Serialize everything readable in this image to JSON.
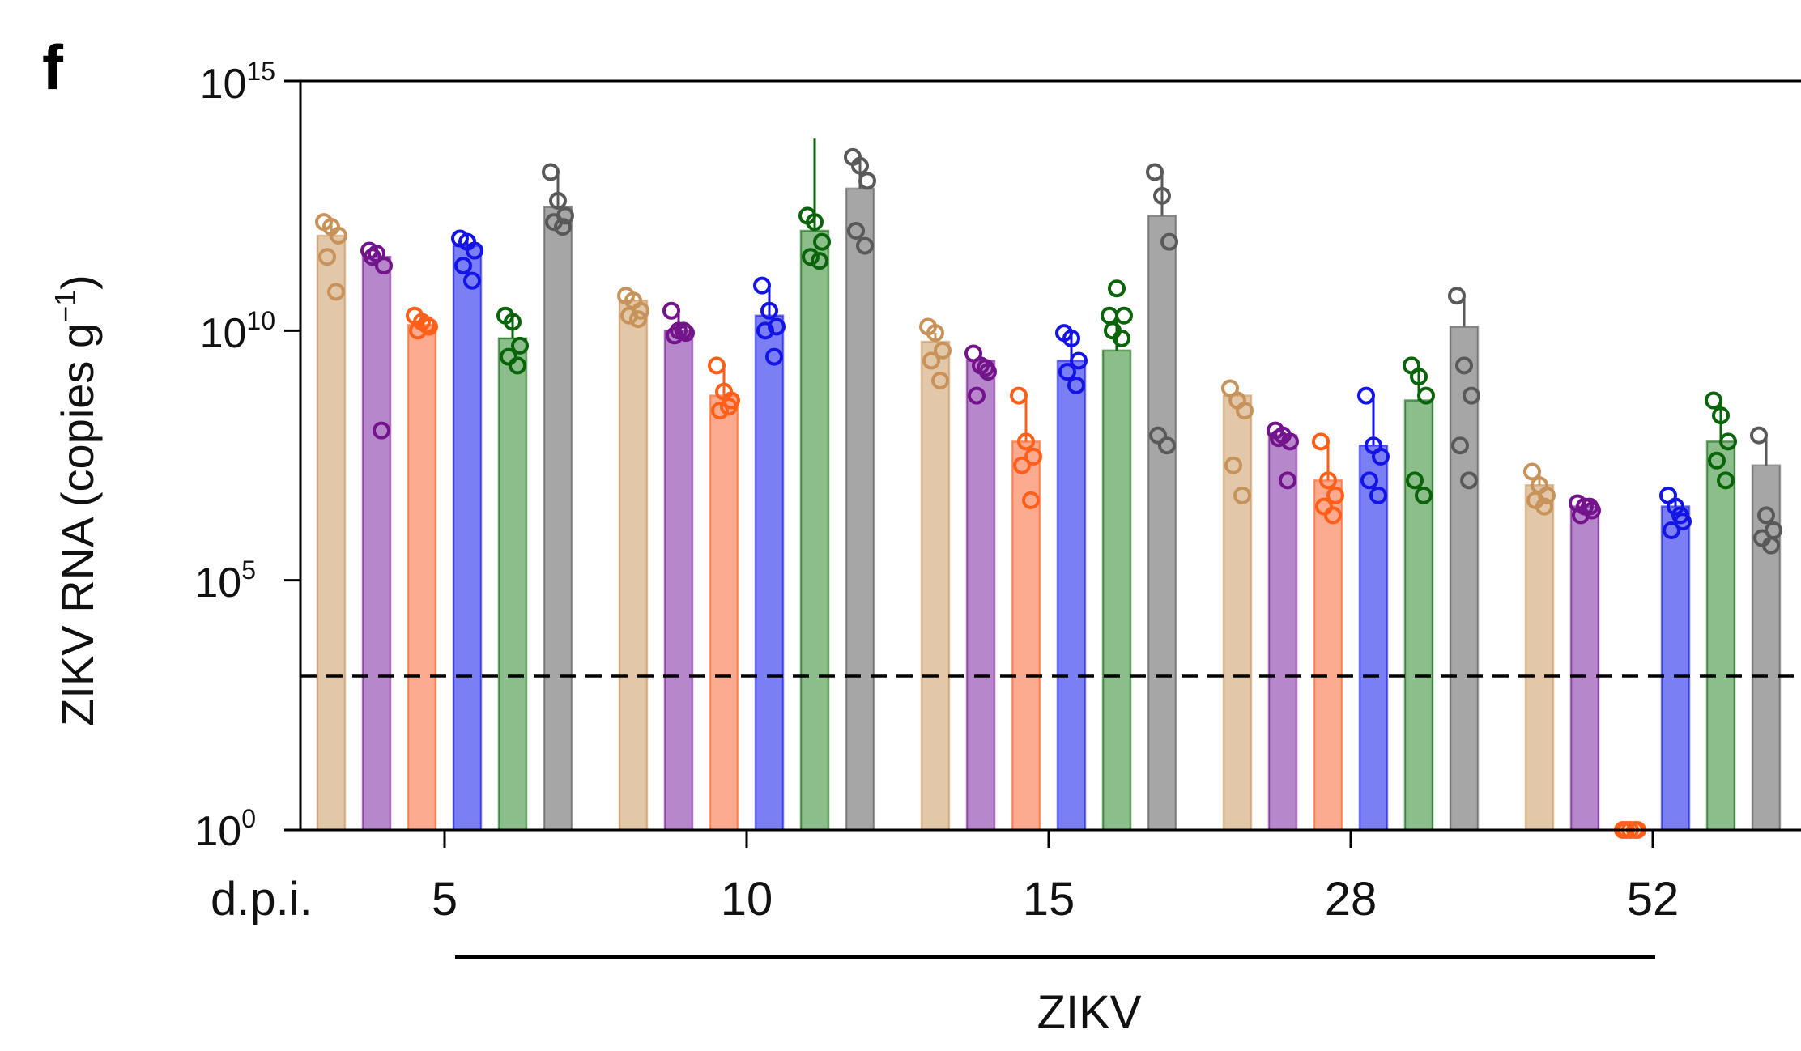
{
  "panel_label": "f",
  "chart_data": {
    "type": "bar",
    "ylabel": "ZIKV RNA (copies g",
    "ylabel_sup": "−1",
    "ylabel_close": ")",
    "yscale": "log10",
    "ylim": [
      1,
      1000000000000000.0
    ],
    "y_ticks": [
      {
        "base": "10",
        "exp": "15",
        "value": 1000000000000000.0
      },
      {
        "base": "10",
        "exp": "10",
        "value": 10000000000.0
      },
      {
        "base": "10",
        "exp": "5",
        "value": 100000.0
      },
      {
        "base": "10",
        "exp": "0",
        "value": 1
      }
    ],
    "x_axis_prefix": "d.p.i.",
    "categories": [
      "5",
      "10",
      "15",
      "28",
      "52"
    ],
    "group_label": "ZIKV",
    "detection_limit": 1000,
    "grid": false,
    "legend": "none",
    "series": [
      {
        "color": "#C8935A",
        "fill": "#E2C7A8",
        "values": [
          800000000000.0,
          40000000000.0,
          6000000000.0,
          500000000.0,
          8000000.0
        ],
        "errors": [
          1300000000000.0,
          50000000000.0,
          9000000000.0,
          700000000.0,
          15000000.0
        ],
        "points": [
          [
            1500000000000.0,
            1200000000000.0,
            800000000000.0,
            300000000000.0,
            60000000000.0
          ],
          [
            50000000000.0,
            40000000000.0,
            25000000000.0,
            20000000000.0,
            17000000000.0
          ],
          [
            12000000000.0,
            9000000000.0,
            4000000000.0,
            2500000000.0,
            1000000000.0
          ],
          [
            700000000.0,
            400000000.0,
            250000000.0,
            20000000.0,
            5000000.0
          ],
          [
            15000000.0,
            8000000.0,
            5000000.0,
            4000000.0,
            3000000.0
          ]
        ]
      },
      {
        "color": "#74148C",
        "fill": "#B688CB",
        "values": [
          300000000000.0,
          10000000000.0,
          2500000000.0,
          80000000.0,
          3000000.0
        ],
        "errors": [
          400000000000.0,
          25000000000.0,
          3500000000.0,
          100000000.0,
          3500000.0
        ],
        "points": [
          [
            400000000000.0,
            350000000000.0,
            200000000000.0,
            300000000000.0,
            100000000.0
          ],
          [
            25000000000.0,
            10000000000.0,
            9000000000.0,
            8000000000.0,
            10000000000.0
          ],
          [
            3500000000.0,
            2000000000.0,
            1500000000.0,
            500000000.0,
            1800000000.0
          ],
          [
            100000000.0,
            80000000.0,
            60000000.0,
            70000000.0,
            10000000.0
          ],
          [
            3500000.0,
            3000000.0,
            2500000.0,
            2000000.0,
            3000000.0
          ]
        ]
      },
      {
        "color": "#FF5F19",
        "fill": "#FCAA90",
        "values": [
          13000000000.0,
          500000000.0,
          60000000.0,
          10000000.0,
          1
        ],
        "errors": [
          20000000000.0,
          2000000000.0,
          500000000.0,
          60000000.0,
          1
        ],
        "points": [
          [
            20000000000.0,
            15000000000.0,
            12000000000.0,
            10000000000.0,
            13000000000.0
          ],
          [
            2000000000.0,
            600000000.0,
            400000000.0,
            250000000.0,
            300000000.0
          ],
          [
            500000000.0,
            60000000.0,
            30000000.0,
            20000000.0,
            4000000.0
          ],
          [
            60000000.0,
            10000000.0,
            5000000.0,
            3000000.0,
            2000000.0
          ],
          [
            1,
            1,
            1,
            1,
            1
          ]
        ]
      },
      {
        "color": "#1414E6",
        "fill": "#7A80F4",
        "values": [
          500000000000.0,
          20000000000.0,
          2500000000.0,
          50000000.0,
          3000000.0
        ],
        "errors": [
          700000000000.0,
          80000000000.0,
          9000000000.0,
          500000000.0,
          5000000.0
        ],
        "points": [
          [
            700000000000.0,
            600000000000.0,
            400000000000.0,
            200000000000.0,
            100000000000.0
          ],
          [
            80000000000.0,
            25000000000.0,
            12000000000.0,
            10000000000.0,
            3000000000.0
          ],
          [
            9000000000.0,
            7000000000.0,
            2500000000.0,
            1500000000.0,
            800000000.0
          ],
          [
            500000000.0,
            50000000.0,
            30000000.0,
            10000000.0,
            5000000.0
          ],
          [
            5000000.0,
            3000000.0,
            1500000.0,
            1000000.0,
            2000000.0
          ]
        ]
      },
      {
        "color": "#0A640A",
        "fill": "#8BBE8B",
        "values": [
          7000000000.0,
          1000000000000.0,
          4000000000.0,
          400000000.0,
          60000000.0
        ],
        "errors": [
          20000000000.0,
          70000000000000.0,
          20000000000.0,
          2000000000.0,
          400000000.0
        ],
        "points": [
          [
            20000000000.0,
            15000000000.0,
            5000000000.0,
            3000000000.0,
            2000000000.0
          ],
          [
            2000000000000.0,
            1500000000000.0,
            600000000000.0,
            300000000000.0,
            250000000000.0
          ],
          [
            20000000000.0,
            70000000000.0,
            20000000000.0,
            10000000000.0,
            7000000000.0
          ],
          [
            2000000000.0,
            1200000000.0,
            500000000.0,
            10000000.0,
            5000000.0
          ],
          [
            400000000.0,
            200000000.0,
            60000000.0,
            25000000.0,
            10000000.0
          ]
        ]
      },
      {
        "color": "#595959",
        "fill": "#A6A6A6",
        "values": [
          3000000000000.0,
          7000000000000.0,
          2000000000000.0,
          12000000000.0,
          20000000.0
        ],
        "errors": [
          15000000000000.0,
          30000000000000.0,
          15000000000000.0,
          50000000000.0,
          80000000.0
        ],
        "points": [
          [
            15000000000000.0,
            4000000000000.0,
            2000000000000.0,
            1500000000000.0,
            1200000000000.0
          ],
          [
            30000000000000.0,
            20000000000000.0,
            10000000000000.0,
            1000000000000.0,
            500000000000.0
          ],
          [
            15000000000000.0,
            5000000000000.0,
            600000000000.0,
            80000000.0,
            50000000.0
          ],
          [
            50000000000.0,
            2000000000.0,
            500000000.0,
            50000000.0,
            10000000.0
          ],
          [
            80000000.0,
            2000000.0,
            1000000.0,
            700000.0,
            500000.0
          ]
        ]
      }
    ]
  }
}
